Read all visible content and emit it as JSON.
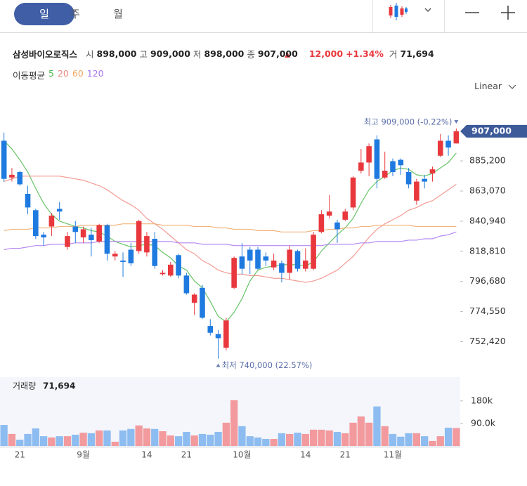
{
  "header": {
    "tabs": [
      "일",
      "주",
      "월"
    ],
    "name": "삼성바이오로직스",
    "quotes": [
      {
        "label": "시",
        "value": "898,000"
      },
      {
        "label": "고",
        "value": "909,000"
      },
      {
        "label": "저",
        "value": "898,000"
      },
      {
        "label": "종",
        "value": "907,000"
      }
    ],
    "change": "12,000",
    "change_pct": "+1.34%",
    "volume_label": "거",
    "volume": "71,694",
    "ma_label": "이동평균",
    "scale": "Linear"
  },
  "chart_data": [
    {
      "type": "candlestick",
      "up_color": "#e8383d",
      "down_color": "#1f7ae0",
      "categories": [
        null,
        null,
        "21",
        null,
        null,
        null,
        null,
        null,
        null,
        null,
        "9월",
        null,
        null,
        null,
        null,
        null,
        null,
        null,
        "14",
        null,
        null,
        null,
        null,
        "21",
        null,
        null,
        null,
        null,
        null,
        null,
        "10월",
        null,
        null,
        null,
        null,
        null,
        null,
        null,
        "14",
        null,
        null,
        null,
        null,
        "21",
        null,
        null,
        null,
        null,
        null,
        "11월",
        null,
        null,
        null,
        null,
        null,
        null,
        null,
        null
      ],
      "open": [
        900000,
        873000,
        877000,
        861000,
        849000,
        831000,
        837000,
        850000,
        822000,
        837000,
        829000,
        831000,
        826000,
        838000,
        815000,
        812000,
        820000,
        819000,
        818000,
        828000,
        802000,
        801000,
        816000,
        801000,
        781000,
        792000,
        764000,
        758000,
        748000,
        792000,
        815000,
        820000,
        820000,
        815000,
        807000,
        810000,
        803000,
        819000,
        806000,
        806000,
        833000,
        845000,
        840000,
        842000,
        851000,
        878000,
        884000,
        901000,
        873000,
        885000,
        886000,
        877000,
        856000,
        872000,
        876000,
        889000,
        900000,
        898000
      ],
      "high": [
        906000,
        880000,
        878000,
        867000,
        850000,
        833000,
        847000,
        855000,
        833000,
        841000,
        837000,
        836000,
        839000,
        839000,
        819000,
        818000,
        825000,
        842000,
        833000,
        833000,
        805000,
        811000,
        817000,
        803000,
        788000,
        794000,
        769000,
        761000,
        770000,
        815000,
        825000,
        822000,
        822000,
        818000,
        817000,
        812000,
        823000,
        820000,
        821000,
        833000,
        849000,
        860000,
        842000,
        850000,
        874000,
        894000,
        898000,
        904000,
        892000,
        887000,
        887000,
        880000,
        872000,
        875000,
        881000,
        905000,
        904000,
        909000
      ],
      "low": [
        870000,
        870000,
        867000,
        846000,
        828000,
        823000,
        830000,
        842000,
        820000,
        825000,
        825000,
        815000,
        825000,
        812000,
        812000,
        800000,
        808000,
        817000,
        815000,
        806000,
        801000,
        800000,
        799000,
        787000,
        772000,
        769000,
        757000,
        740000,
        746000,
        791000,
        802000,
        802000,
        805000,
        808000,
        805000,
        796000,
        798000,
        804000,
        804000,
        805000,
        832000,
        843000,
        825000,
        841000,
        849000,
        876000,
        874000,
        865000,
        872000,
        874000,
        875000,
        865000,
        853000,
        865000,
        870000,
        888000,
        889000,
        898000
      ],
      "close": [
        872000,
        875000,
        868000,
        851000,
        830000,
        829000,
        845000,
        848000,
        830000,
        833000,
        835000,
        827000,
        838000,
        817000,
        817000,
        811000,
        810000,
        841000,
        830000,
        808000,
        803000,
        809000,
        801000,
        788000,
        787000,
        770000,
        759000,
        755000,
        768000,
        814000,
        806000,
        812000,
        806000,
        812000,
        812000,
        803000,
        820000,
        806000,
        812000,
        831000,
        846000,
        848000,
        835000,
        848000,
        873000,
        884000,
        896000,
        872000,
        878000,
        877000,
        882000,
        868000,
        870000,
        870000,
        879000,
        900000,
        895000,
        907000
      ],
      "series": [
        {
          "name": "5",
          "color": "#4cb84c",
          "values": [
            900000,
            894000,
            886000,
            877000,
            865000,
            854000,
            846000,
            841000,
            839000,
            837000,
            836000,
            834000,
            833000,
            830000,
            826000,
            824000,
            822000,
            823000,
            824000,
            823000,
            818000,
            814000,
            808000,
            805000,
            797000,
            792000,
            782000,
            771000,
            767000,
            774000,
            784000,
            797000,
            805000,
            807000,
            808000,
            809000,
            809000,
            809000,
            808000,
            811000,
            819000,
            825000,
            831000,
            836000,
            843000,
            854000,
            864000,
            870000,
            874000,
            878000,
            880000,
            879000,
            875000,
            874000,
            876000,
            880000,
            884000,
            891000
          ]
        },
        {
          "name": "20",
          "color": "#ef8a80",
          "values": [
            870000,
            872000,
            874000,
            874000,
            874000,
            874000,
            874000,
            874000,
            873000,
            872000,
            871000,
            869000,
            867000,
            864000,
            860000,
            856000,
            853000,
            849000,
            843000,
            839000,
            835000,
            830000,
            825000,
            820000,
            817000,
            812000,
            809000,
            805000,
            803000,
            802000,
            802000,
            801000,
            801000,
            800000,
            799000,
            799000,
            798000,
            797000,
            796000,
            797000,
            799000,
            802000,
            805000,
            810000,
            815000,
            822000,
            829000,
            835000,
            839000,
            842000,
            845000,
            849000,
            851000,
            854000,
            856000,
            860000,
            864000,
            868000
          ]
        },
        {
          "name": "60",
          "color": "#eea765",
          "values": [
            834000,
            835000,
            835000,
            835000,
            836000,
            836000,
            836000,
            837000,
            837000,
            837000,
            838000,
            838000,
            838000,
            838000,
            838000,
            839000,
            839000,
            839000,
            839000,
            839000,
            838000,
            838000,
            838000,
            838000,
            837000,
            837000,
            837000,
            836000,
            836000,
            835000,
            835000,
            835000,
            834000,
            834000,
            834000,
            833000,
            833000,
            833000,
            833000,
            834000,
            834000,
            835000,
            835000,
            836000,
            836000,
            837000,
            837000,
            838000,
            838000,
            838000,
            838000,
            838000,
            837000,
            837000,
            837000,
            837000,
            837000,
            837000
          ]
        },
        {
          "name": "120",
          "color": "#a874ee",
          "values": [
            820000,
            821000,
            821000,
            822000,
            823000,
            823000,
            824000,
            824000,
            824000,
            825000,
            825000,
            825000,
            826000,
            826000,
            826000,
            826000,
            826000,
            826000,
            826000,
            826000,
            826000,
            826000,
            825000,
            825000,
            825000,
            824000,
            824000,
            824000,
            824000,
            823000,
            823000,
            823000,
            823000,
            823000,
            823000,
            823000,
            823000,
            823000,
            823000,
            823000,
            823000,
            824000,
            824000,
            824000,
            824000,
            825000,
            825000,
            826000,
            826000,
            826000,
            826000,
            827000,
            827000,
            828000,
            828000,
            830000,
            831000,
            833000
          ]
        }
      ],
      "ylim": [
        730000,
        926000
      ],
      "yticks": [
        {
          "value": 752420,
          "label": "752,420"
        },
        {
          "value": 774550,
          "label": "774,550"
        },
        {
          "value": 796680,
          "label": "796,680"
        },
        {
          "value": 818810,
          "label": "818,810"
        },
        {
          "value": 840940,
          "label": "840,940"
        },
        {
          "value": 863070,
          "label": "863,070"
        },
        {
          "value": 885200,
          "label": "885,200"
        }
      ],
      "annotations": {
        "high": "최고 909,000 (-0.22%)",
        "low": "최저 740,000 (22.57%)",
        "last": "907,000"
      }
    },
    {
      "type": "bar",
      "title": "거래량",
      "current_label": "71,694",
      "up_color": "#f29a9d",
      "down_color": "#8dbcf0",
      "values": [
        84000,
        48000,
        25000,
        48000,
        70000,
        39000,
        34000,
        39000,
        39000,
        45000,
        53000,
        51000,
        62000,
        62000,
        17000,
        62000,
        68000,
        82000,
        70000,
        68000,
        59000,
        42000,
        39000,
        56000,
        42000,
        48000,
        45000,
        56000,
        93000,
        183000,
        79000,
        39000,
        34000,
        28000,
        28000,
        51000,
        48000,
        53000,
        48000,
        65000,
        65000,
        62000,
        56000,
        51000,
        93000,
        118000,
        93000,
        158000,
        79000,
        48000,
        37000,
        51000,
        51000,
        39000,
        20000,
        39000,
        73000,
        71694
      ],
      "ylim": [
        0,
        275000
      ],
      "yticks": [
        {
          "value": 90000,
          "label": "90.0k"
        },
        {
          "value": 180000,
          "label": "180k"
        }
      ]
    }
  ]
}
